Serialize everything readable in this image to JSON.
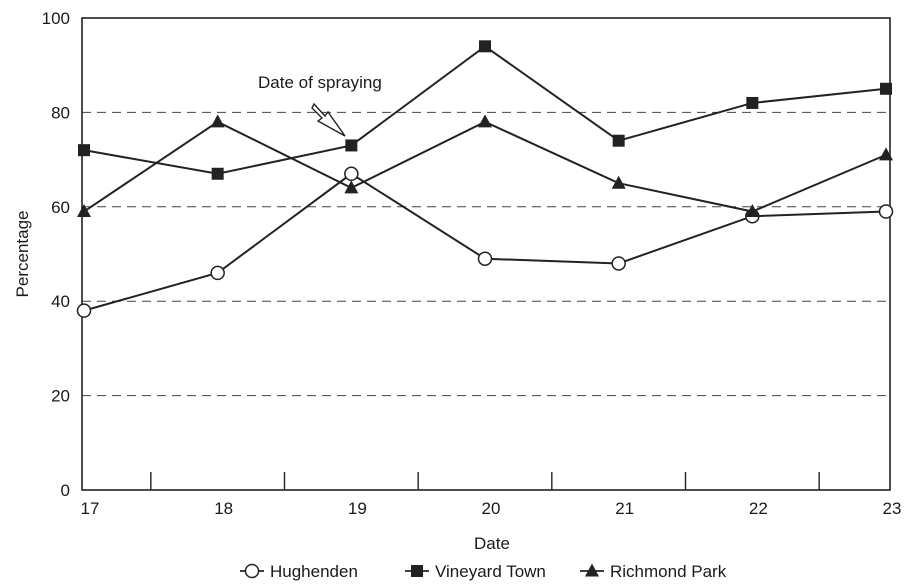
{
  "chart_data": {
    "type": "line",
    "title": "",
    "xlabel": "Date",
    "ylabel": "Percentage",
    "x": [
      "17",
      "18",
      "19",
      "20",
      "21",
      "22",
      "23"
    ],
    "xlim": [
      17,
      23
    ],
    "ylim": [
      0,
      100
    ],
    "y_ticks": [
      "0",
      "20",
      "40",
      "60",
      "80",
      "100"
    ],
    "grid": "dashed horizontal lines at 20, 40, 60, 80",
    "legend_position": "bottom",
    "series": [
      {
        "name": "Hughenden",
        "marker": "open-circle",
        "values": [
          38,
          46,
          67,
          49,
          48,
          58,
          59
        ]
      },
      {
        "name": "Vineyard Town",
        "marker": "filled-square",
        "values": [
          72,
          67,
          73,
          94,
          74,
          82,
          85
        ]
      },
      {
        "name": "Richmond Park",
        "marker": "filled-triangle",
        "values": [
          59,
          78,
          64,
          78,
          65,
          59,
          71
        ]
      }
    ],
    "annotations": [
      {
        "text": "Date of spraying",
        "x": 19,
        "y": 73
      }
    ]
  }
}
